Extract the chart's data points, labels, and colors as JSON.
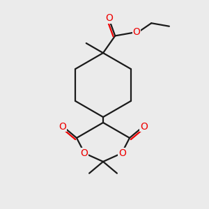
{
  "bg_color": "#ebebeb",
  "bond_color": "#1a1a1a",
  "oxygen_color": "#ee0000",
  "line_width": 1.6,
  "fig_size": [
    3.0,
    3.0
  ],
  "dpi": 100,
  "xlim": [
    0,
    300
  ],
  "ylim": [
    0,
    300
  ]
}
